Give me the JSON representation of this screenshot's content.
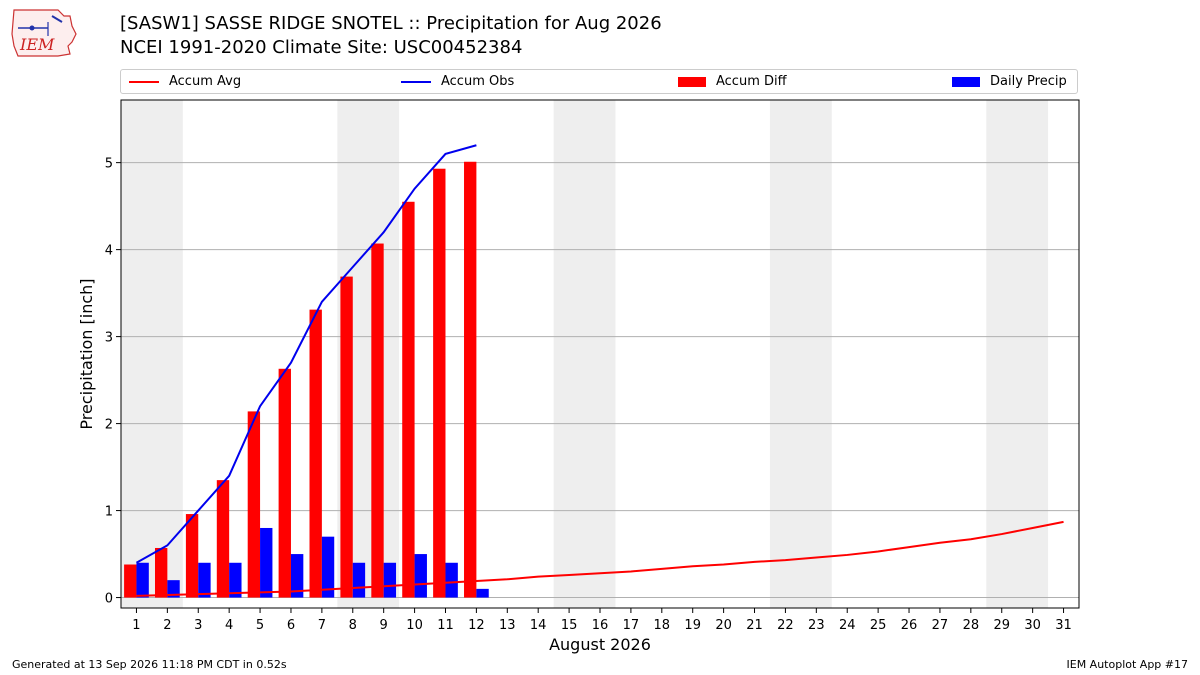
{
  "header": {
    "logo_text": "IEM",
    "title": "[SASW1] SASSE RIDGE SNOTEL :: Precipitation for Aug 2026",
    "subtitle": "NCEI 1991-2020 Climate Site: USC00452384"
  },
  "footer": {
    "generated": "Generated at 13 Sep 2026 11:18 PM CDT in 0.52s",
    "app": "IEM Autoplot App #17"
  },
  "legend": {
    "accum_avg": "Accum Avg",
    "accum_obs": "Accum Obs",
    "accum_diff": "Accum Diff",
    "daily_precip": "Daily Precip"
  },
  "colors": {
    "accum_avg": "#ff0000",
    "accum_obs": "#0000ee",
    "accum_diff": "#ff0000",
    "daily_precip": "#0000ff",
    "weekend_shade": "#eeeeee",
    "grid": "#b0b0b0"
  },
  "chart_data": {
    "type": "bar",
    "xlabel": "August 2026",
    "ylabel": "Precipitation [inch]",
    "xlim": [
      0.5,
      31.5
    ],
    "ylim": [
      -0.12,
      5.72
    ],
    "yticks": [
      0,
      1,
      2,
      3,
      4,
      5
    ],
    "x": [
      1,
      2,
      3,
      4,
      5,
      6,
      7,
      8,
      9,
      10,
      11,
      12,
      13,
      14,
      15,
      16,
      17,
      18,
      19,
      20,
      21,
      22,
      23,
      24,
      25,
      26,
      27,
      28,
      29,
      30,
      31
    ],
    "grid": "horizontal",
    "weekend_shading": [
      [
        1,
        2
      ],
      [
        8,
        9
      ],
      [
        15,
        16
      ],
      [
        22,
        23
      ],
      [
        29,
        30
      ]
    ],
    "series": [
      {
        "name": "Accum Avg",
        "kind": "line",
        "x": [
          1,
          2,
          3,
          4,
          5,
          6,
          7,
          8,
          9,
          10,
          11,
          12,
          13,
          14,
          15,
          16,
          17,
          18,
          19,
          20,
          21,
          22,
          23,
          24,
          25,
          26,
          27,
          28,
          29,
          30,
          31
        ],
        "values": [
          0.02,
          0.03,
          0.04,
          0.05,
          0.06,
          0.07,
          0.09,
          0.11,
          0.13,
          0.15,
          0.17,
          0.19,
          0.21,
          0.24,
          0.26,
          0.28,
          0.3,
          0.33,
          0.36,
          0.38,
          0.41,
          0.43,
          0.46,
          0.49,
          0.53,
          0.58,
          0.63,
          0.67,
          0.73,
          0.8,
          0.87
        ]
      },
      {
        "name": "Accum Obs",
        "kind": "line",
        "x": [
          1,
          2,
          3,
          4,
          5,
          6,
          7,
          8,
          9,
          10,
          11,
          12
        ],
        "values": [
          0.4,
          0.6,
          1.0,
          1.4,
          2.2,
          2.7,
          3.4,
          3.8,
          4.2,
          4.7,
          5.1,
          5.2
        ]
      },
      {
        "name": "Accum Diff",
        "kind": "bar",
        "x": [
          1,
          2,
          3,
          4,
          5,
          6,
          7,
          8,
          9,
          10,
          11,
          12
        ],
        "values": [
          0.38,
          0.57,
          0.96,
          1.35,
          2.14,
          2.63,
          3.31,
          3.69,
          4.07,
          4.55,
          4.93,
          5.01
        ]
      },
      {
        "name": "Daily Precip",
        "kind": "bar",
        "x": [
          1,
          2,
          3,
          4,
          5,
          6,
          7,
          8,
          9,
          10,
          11,
          12
        ],
        "values": [
          0.4,
          0.2,
          0.4,
          0.4,
          0.8,
          0.5,
          0.7,
          0.4,
          0.4,
          0.5,
          0.4,
          0.1
        ]
      }
    ]
  }
}
